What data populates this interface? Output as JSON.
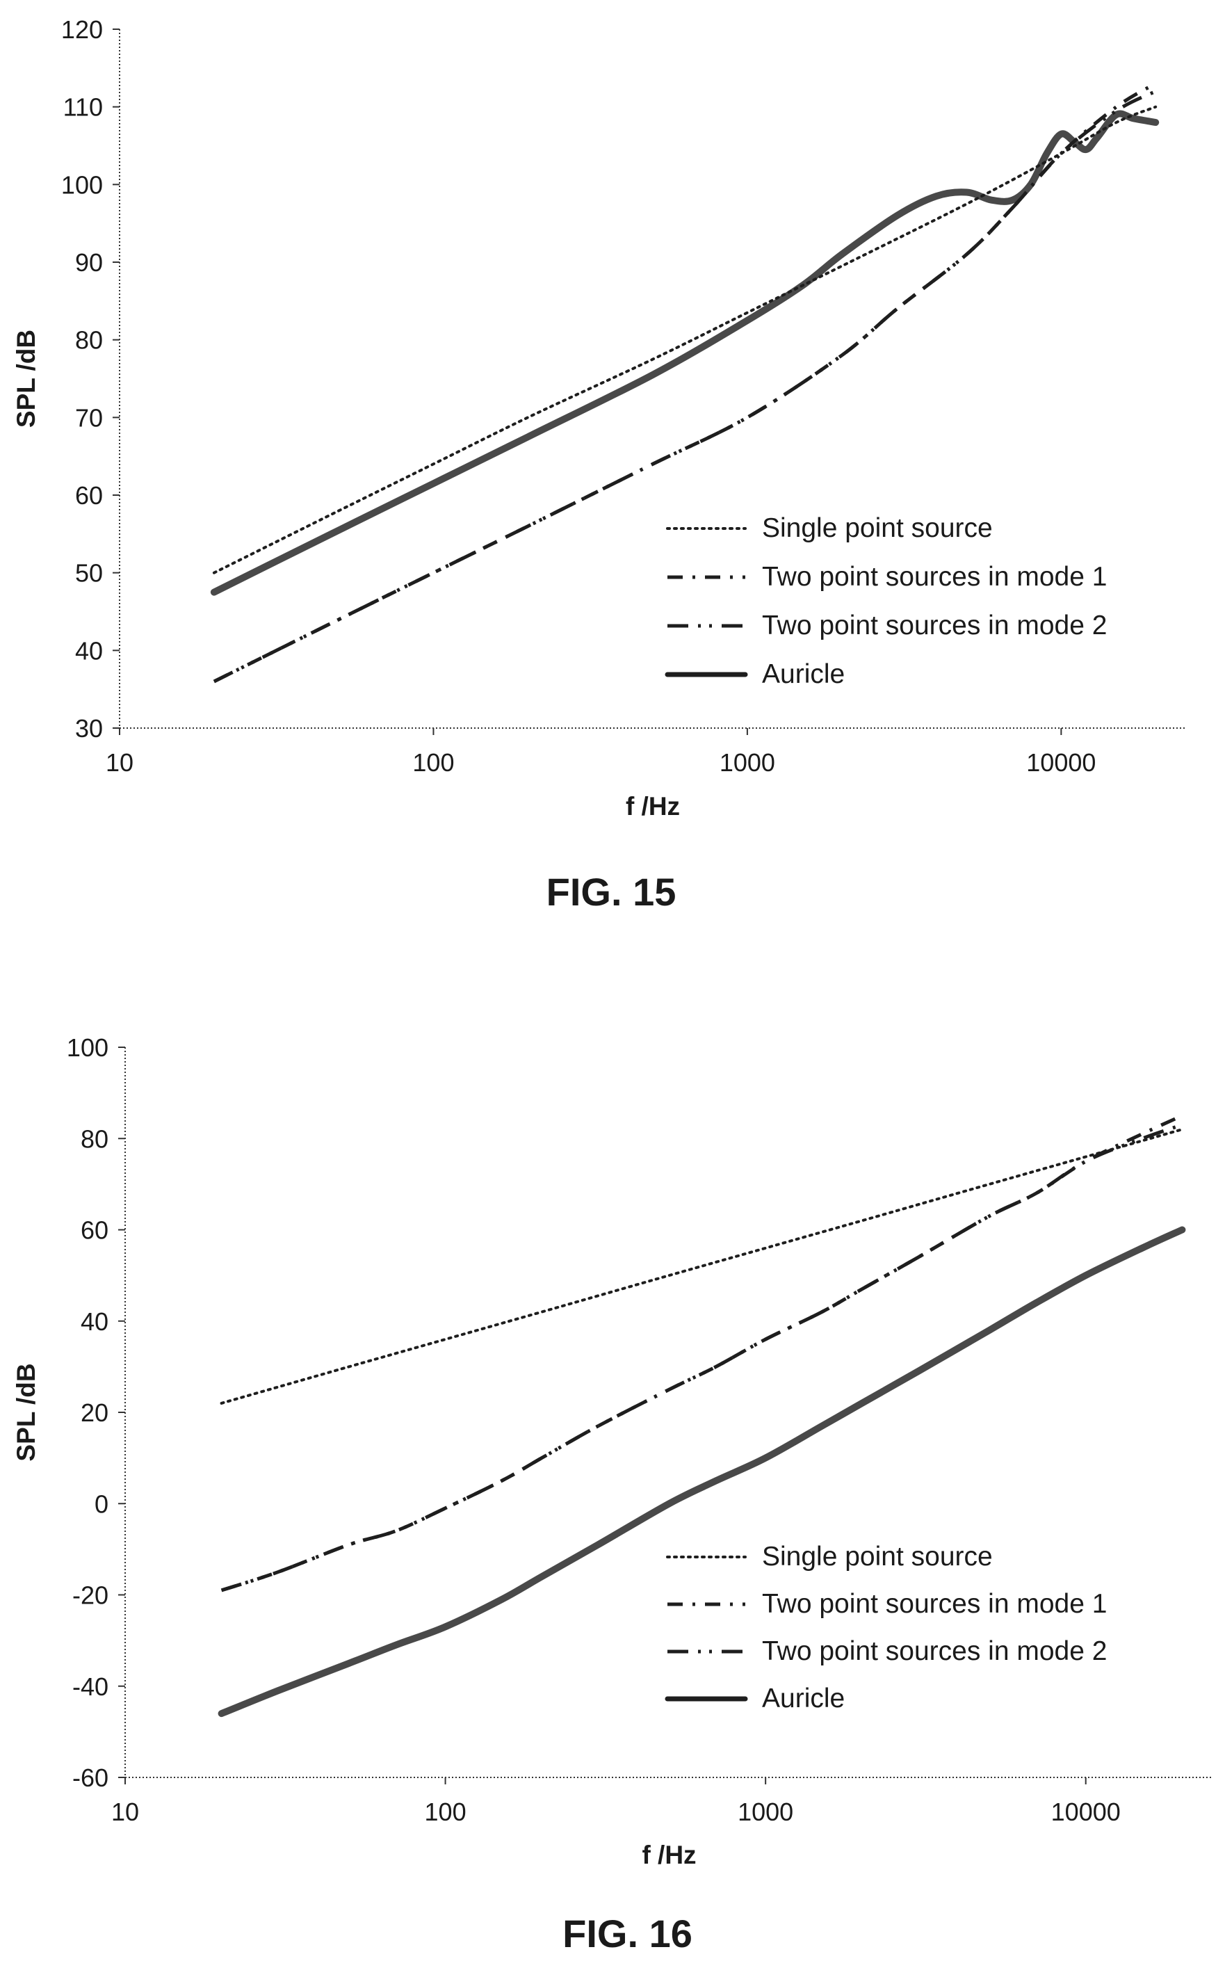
{
  "chart_data": [
    {
      "type": "line",
      "caption": "FIG. 15",
      "xlabel": "f /Hz",
      "ylabel": "SPL /dB",
      "xscale": "log",
      "xlim": [
        10,
        25000
      ],
      "ylim": [
        30,
        120
      ],
      "xticks": [
        10,
        100,
        1000,
        10000
      ],
      "xtick_labels": [
        "10",
        "100",
        "1000",
        "10000"
      ],
      "yticks": [
        30,
        40,
        50,
        60,
        70,
        80,
        90,
        100,
        110,
        120
      ],
      "ytick_labels": [
        "30",
        "40",
        "50",
        "60",
        "70",
        "80",
        "90",
        "100",
        "110",
        "120"
      ],
      "legend_position": "bottom-right",
      "series": [
        {
          "name": "Single point source",
          "style": "dotted",
          "x": [
            20,
            50,
            100,
            200,
            500,
            1000,
            2000,
            5000,
            10000,
            15000,
            20000
          ],
          "y": [
            50,
            58,
            64,
            70,
            77.5,
            83.5,
            89.5,
            97.5,
            104,
            108,
            110
          ]
        },
        {
          "name": "Two point sources in mode 1",
          "style": "dashdot",
          "x": [
            20,
            50,
            100,
            200,
            500,
            1000,
            2000,
            3000,
            5000,
            7000,
            10000,
            15000,
            20000
          ],
          "y": [
            36,
            44,
            50,
            56,
            64,
            70,
            78,
            84,
            91,
            97,
            104,
            110,
            113
          ]
        },
        {
          "name": "Two point sources in mode 2",
          "style": "dashdotdot",
          "x": [
            20,
            50,
            100,
            200,
            500,
            1000,
            2000,
            3000,
            5000,
            7000,
            10000,
            15000,
            20000
          ],
          "y": [
            36,
            44,
            50,
            56,
            64,
            70,
            78,
            84,
            91,
            97,
            104,
            109.5,
            112
          ]
        },
        {
          "name": "Auricle",
          "style": "solid-thick",
          "x": [
            20,
            50,
            100,
            200,
            500,
            1000,
            1500,
            2000,
            3000,
            4000,
            5000,
            6000,
            7000,
            8000,
            9000,
            10000,
            11000,
            12000,
            13000,
            15000,
            17000,
            20000
          ],
          "y": [
            47.5,
            55.5,
            61.5,
            67.5,
            75.5,
            82.5,
            87,
            91,
            96,
            98.5,
            99,
            98,
            98,
            100,
            104,
            106.5,
            105.5,
            104.5,
            106,
            109,
            108.5,
            108
          ]
        }
      ]
    },
    {
      "type": "line",
      "caption": "FIG. 16",
      "xlabel": "f /Hz",
      "ylabel": "SPL /dB",
      "xscale": "log",
      "xlim": [
        10,
        25000
      ],
      "ylim": [
        -60,
        100
      ],
      "xticks": [
        10,
        100,
        1000,
        10000
      ],
      "xtick_labels": [
        "10",
        "100",
        "1000",
        "10000"
      ],
      "yticks": [
        -60,
        -40,
        -20,
        0,
        20,
        40,
        60,
        80,
        100
      ],
      "ytick_labels": [
        "-60",
        "-40",
        "-20",
        "0",
        "20",
        "40",
        "60",
        "80",
        "100"
      ],
      "legend_position": "bottom-right",
      "series": [
        {
          "name": "Single point source",
          "style": "dotted",
          "x": [
            20,
            50,
            100,
            200,
            500,
            1000,
            2000,
            5000,
            10000,
            20000
          ],
          "y": [
            22,
            30,
            36,
            42,
            50,
            56,
            62,
            70,
            76,
            82
          ]
        },
        {
          "name": "Two point sources in mode 1",
          "style": "dashdot",
          "x": [
            20,
            30,
            50,
            70,
            100,
            150,
            200,
            300,
            500,
            700,
            1000,
            1500,
            2000,
            3000,
            5000,
            7000,
            10000,
            15000,
            20000
          ],
          "y": [
            -19,
            -15,
            -9,
            -6,
            -1,
            5,
            10,
            17,
            25,
            30,
            36,
            42,
            47,
            54,
            63,
            68,
            75,
            81,
            85
          ]
        },
        {
          "name": "Two point sources in mode 2",
          "style": "dashdotdot",
          "x": [
            20,
            30,
            50,
            70,
            100,
            150,
            200,
            300,
            500,
            700,
            1000,
            1500,
            2000,
            3000,
            5000,
            7000,
            10000,
            15000,
            20000
          ],
          "y": [
            -19,
            -15,
            -9,
            -6,
            -1,
            5,
            10,
            17,
            25,
            30,
            36,
            42,
            47,
            54,
            63,
            68,
            75,
            80,
            83
          ]
        },
        {
          "name": "Auricle",
          "style": "solid-thick",
          "x": [
            20,
            30,
            50,
            70,
            100,
            150,
            200,
            300,
            500,
            700,
            1000,
            1500,
            2000,
            3000,
            5000,
            7000,
            10000,
            15000,
            20000
          ],
          "y": [
            -46,
            -41,
            -35,
            -31,
            -27,
            -21,
            -16,
            -9,
            0,
            5,
            10,
            17,
            22,
            29,
            38,
            44,
            50,
            56,
            60
          ]
        }
      ]
    }
  ]
}
